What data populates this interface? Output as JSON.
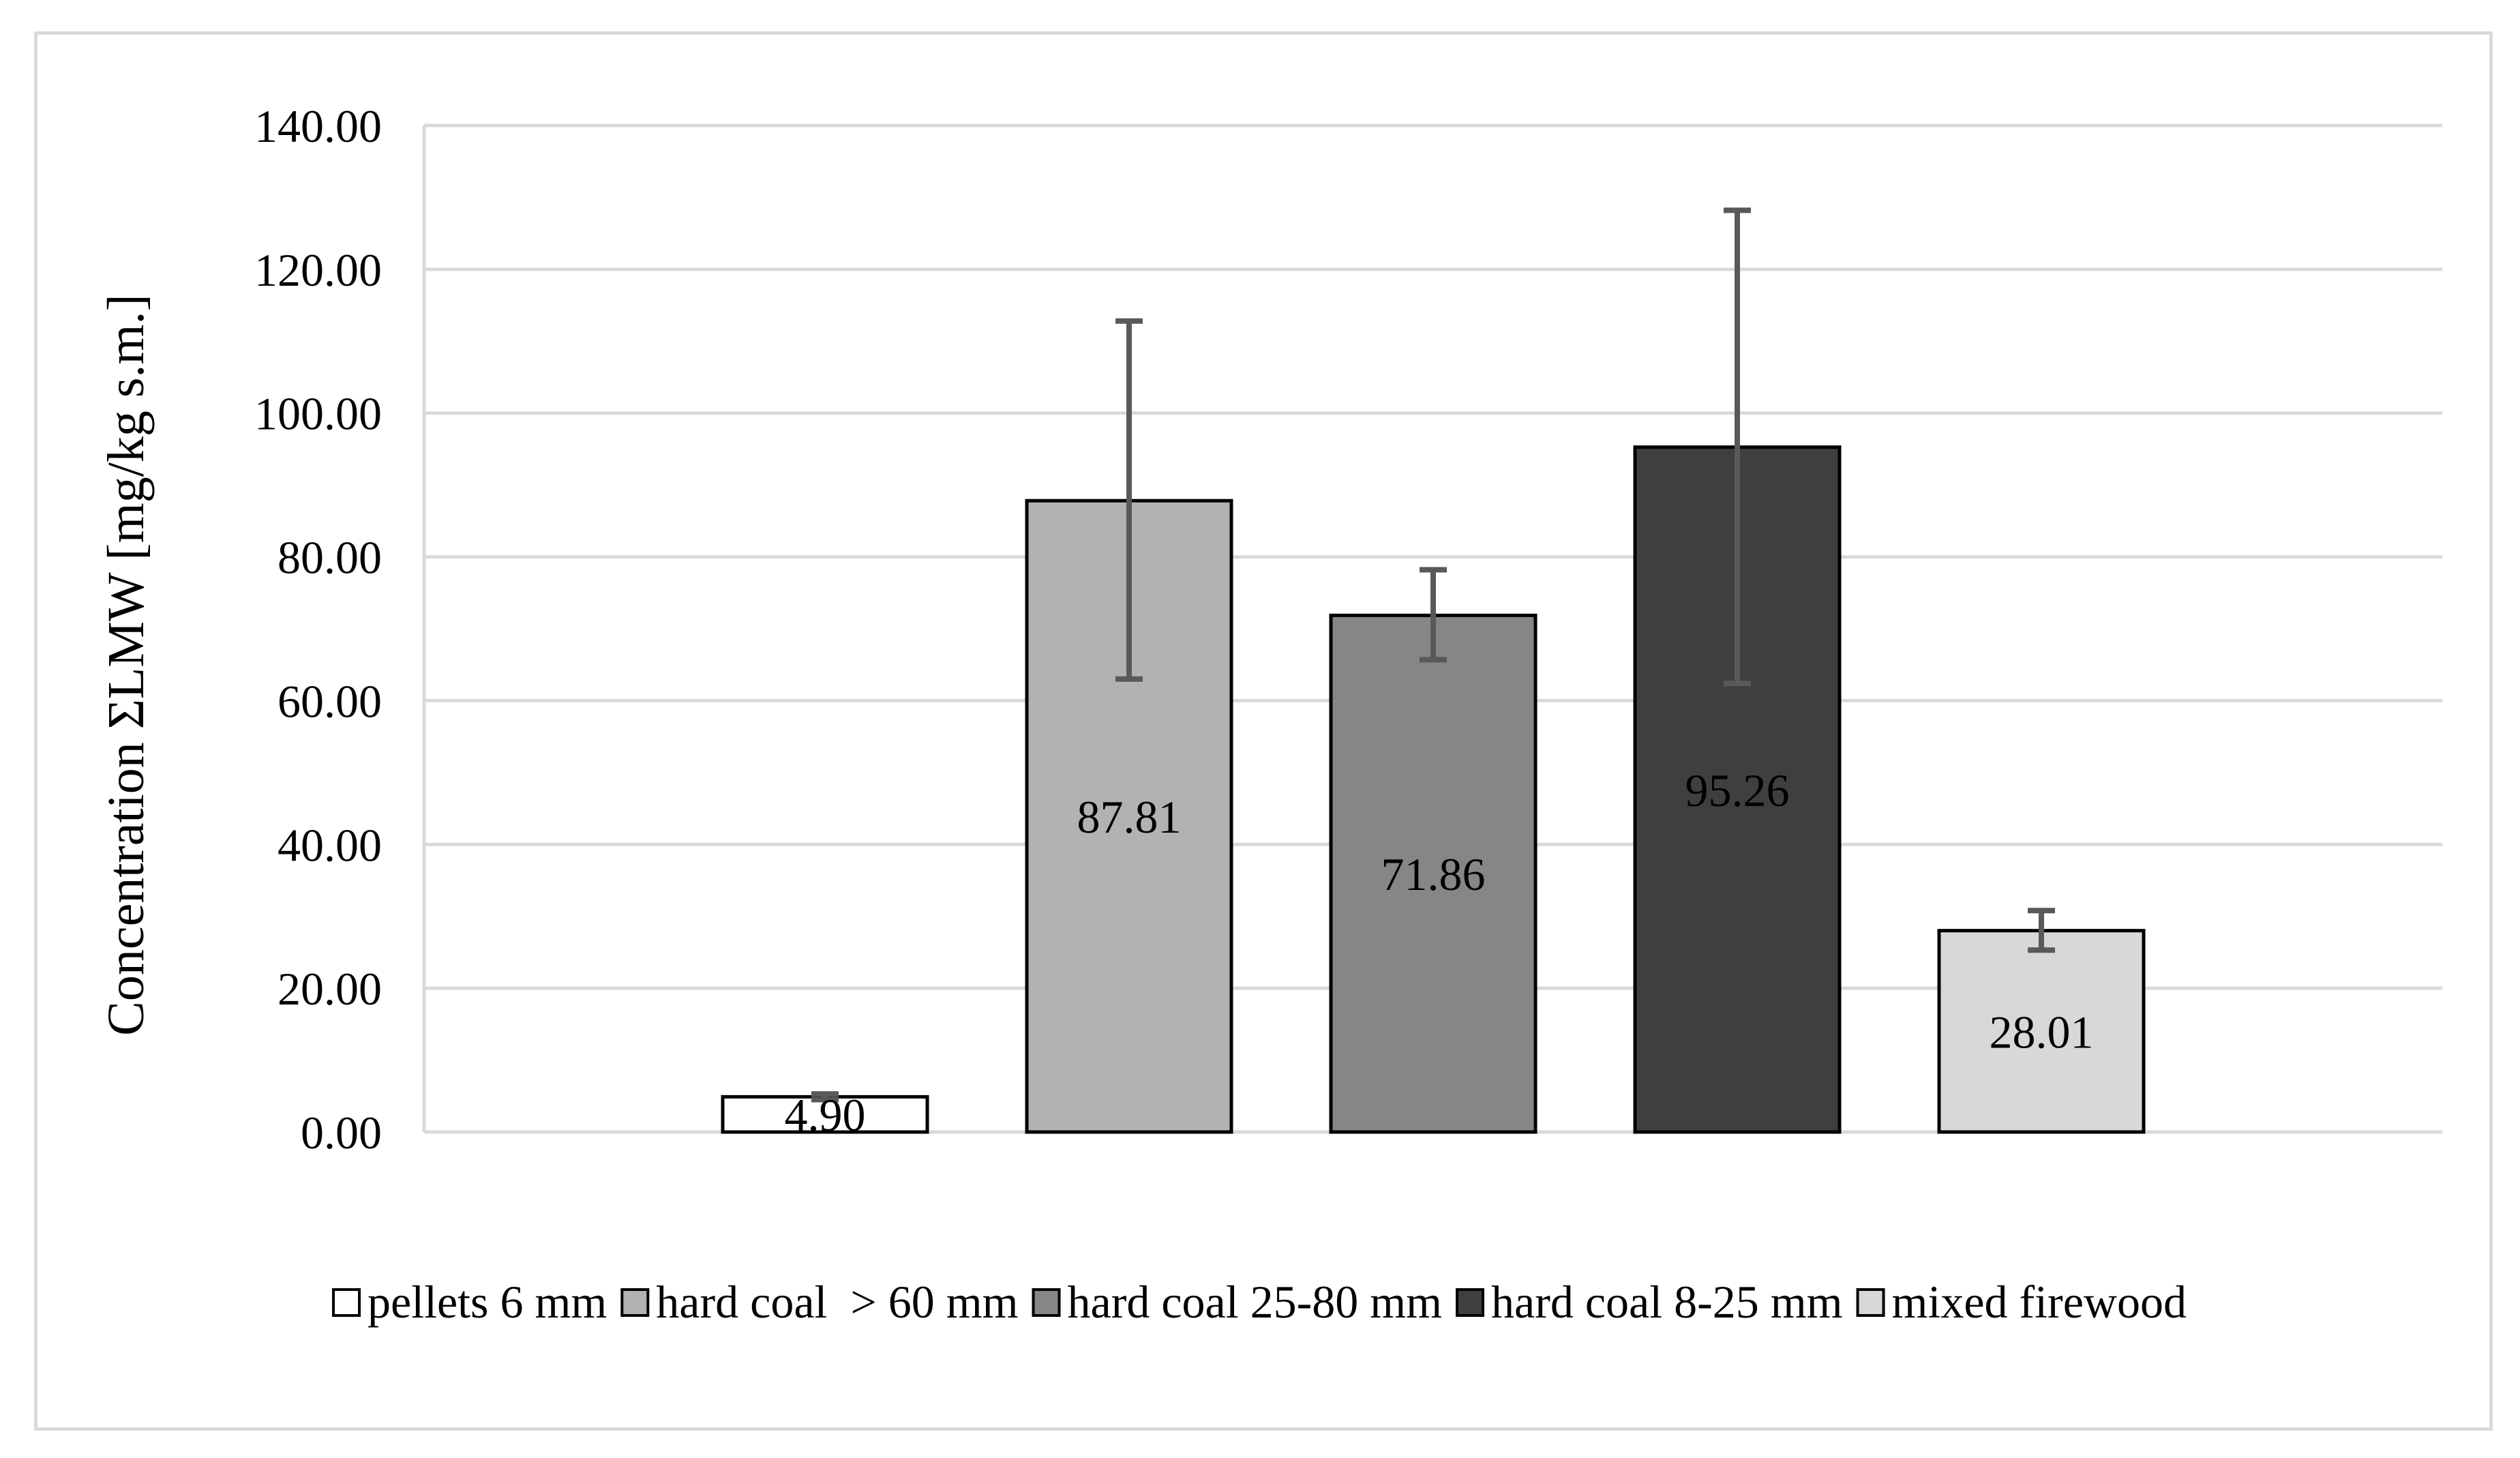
{
  "chart_data": {
    "type": "bar",
    "title": "",
    "xlabel": "",
    "ylabel": "Concentration ΣLMW [mg/kg s.m.]",
    "ylim": [
      0,
      140
    ],
    "ytick_step": 20,
    "ytick_labels": [
      "0.00",
      "20.00",
      "40.00",
      "60.00",
      "80.00",
      "100.00",
      "120.00",
      "140.00"
    ],
    "grid": true,
    "legend_position": "bottom",
    "series": [
      {
        "name": "pellets 6 mm",
        "value": 4.9,
        "label": "4.90",
        "error_low": 4.5,
        "error_high": 5.3,
        "color": "#ffffff"
      },
      {
        "name": "hard coal  > 60 mm",
        "value": 87.81,
        "label": "87.81",
        "error_low": 63.0,
        "error_high": 112.8,
        "color": "#b2b2b2"
      },
      {
        "name": "hard coal 25-80 mm",
        "value": 71.86,
        "label": "71.86",
        "error_low": 65.7,
        "error_high": 78.2,
        "color": "#868686"
      },
      {
        "name": "hard coal 8-25 mm",
        "value": 95.26,
        "label": "95.26",
        "error_low": 62.4,
        "error_high": 128.2,
        "color": "#3f3f3f"
      },
      {
        "name": "mixed firewood",
        "value": 28.01,
        "label": "28.01",
        "error_low": 25.3,
        "error_high": 30.8,
        "color": "#d8d8d8"
      }
    ],
    "colors": {
      "gridline": "#d9d9d9",
      "bar_border": "#000000",
      "error_bar": "#595959",
      "frame": "#d9d9d9"
    }
  }
}
